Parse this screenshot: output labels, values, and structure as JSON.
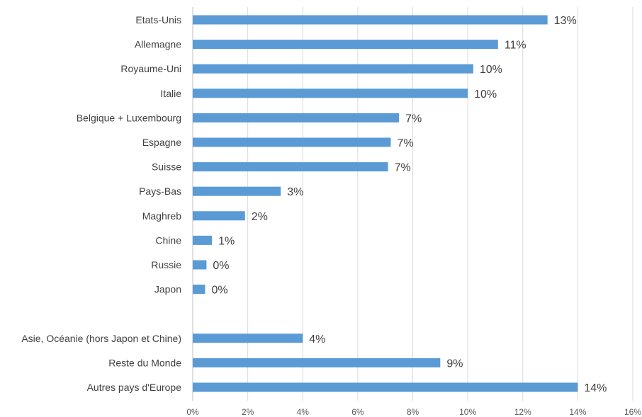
{
  "chart_data": {
    "type": "bar",
    "orientation": "horizontal",
    "title": "",
    "xlabel": "",
    "ylabel": "",
    "xlim": [
      0,
      16
    ],
    "x_unit": "%",
    "xticks": [
      "0%",
      "2%",
      "4%",
      "6%",
      "8%",
      "10%",
      "12%",
      "14%",
      "16%"
    ],
    "grid": true,
    "legend": "none",
    "bar_color": "#5b9bd5",
    "categories": [
      "Etats-Unis",
      "Allemagne",
      "Royaume-Uni",
      "Italie",
      "Belgique + Luxembourg",
      "Espagne",
      "Suisse",
      "Pays-Bas",
      "Maghreb",
      "Chine",
      "Russie",
      "Japon",
      "",
      "Asie, Océanie (hors Japon et Chine)",
      "Reste du Monde",
      "Autres pays d'Europe"
    ],
    "values": [
      12.9,
      11.1,
      10.2,
      10.0,
      7.5,
      7.2,
      7.1,
      3.2,
      1.9,
      0.7,
      0.5,
      0.45,
      null,
      4.0,
      9.0,
      14.0
    ],
    "data_labels": [
      "13%",
      "11%",
      "10%",
      "10%",
      "7%",
      "7%",
      "7%",
      "3%",
      "2%",
      "1%",
      "0%",
      "0%",
      "",
      "4%",
      "9%",
      "14%"
    ]
  }
}
